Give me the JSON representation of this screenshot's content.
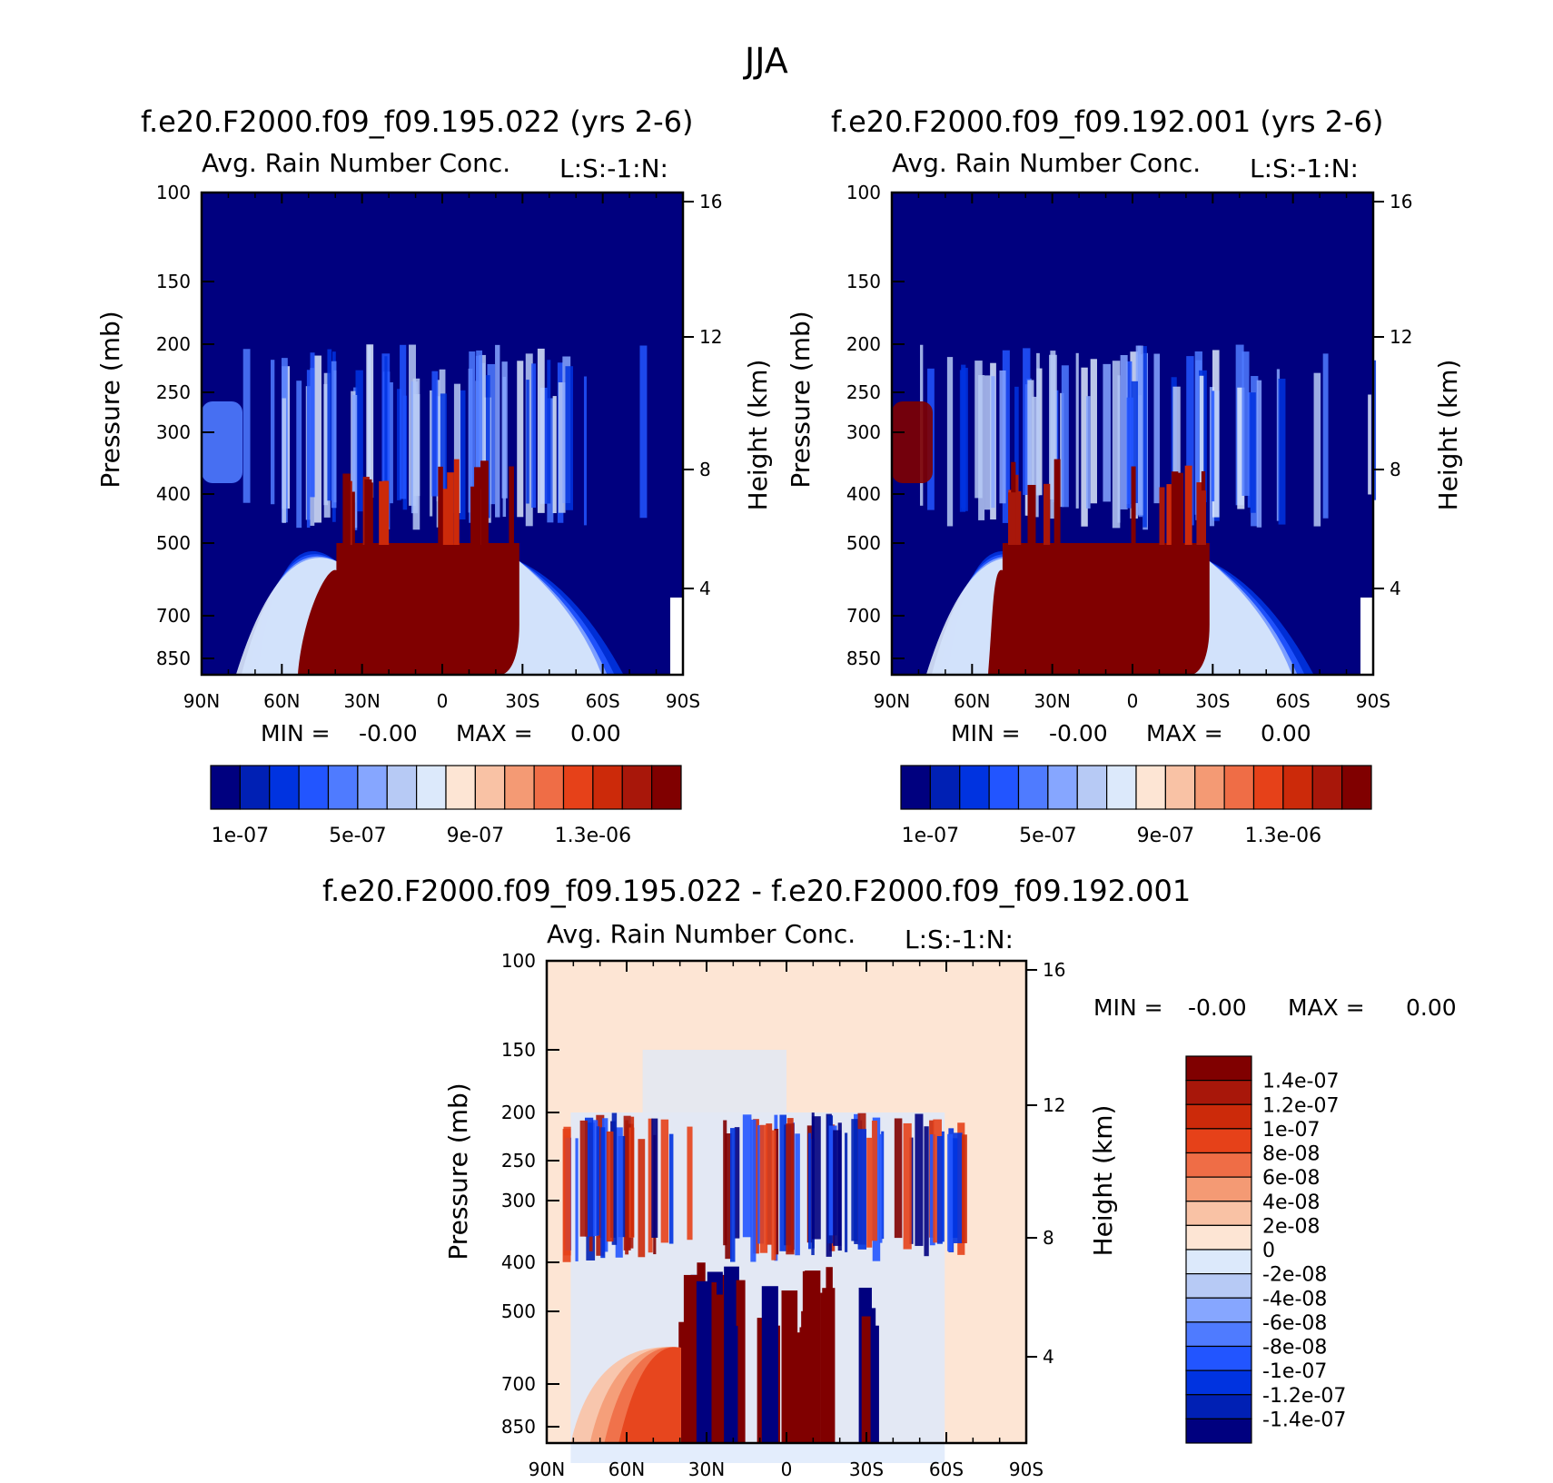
{
  "figure": {
    "title": "JJA"
  },
  "chart_data": [
    {
      "type": "heatmap",
      "title": "f.e20.F2000.f09_f09.195.022 (yrs 2-6)",
      "subtitle_left": "Avg. Rain Number Conc.",
      "subtitle_right": "L:S:-1:N:",
      "xlabel": "",
      "ylabel": "Pressure (mb)",
      "y2label": "Height (km)",
      "x_ticks": [
        "90N",
        "60N",
        "30N",
        "0",
        "30S",
        "60S",
        "90S"
      ],
      "y_ticks": [
        "100",
        "150",
        "200",
        "250",
        "300",
        "400",
        "500",
        "700",
        "850"
      ],
      "y2_ticks": [
        "16",
        "12",
        "8",
        "4"
      ],
      "y_scale": "log",
      "ylim": [
        100,
        1000
      ],
      "min_text": "MIN =",
      "min_value": "-0.00",
      "max_text": "MAX =",
      "max_value": "0.00",
      "colorbar_labels": [
        "1e-07",
        "5e-07",
        "9e-07",
        "1.3e-06"
      ],
      "colorbar_colors": [
        "#00007f",
        "#0020b4",
        "#0033e0",
        "#2255ff",
        "#4f7bff",
        "#86a6ff",
        "#b7caf5",
        "#dce9fb",
        "#fde5d4",
        "#f9c2a5",
        "#f49a74",
        "#ef6d46",
        "#e64119",
        "#cc2a0a",
        "#a8170a",
        "#800000"
      ]
    },
    {
      "type": "heatmap",
      "title": "f.e20.F2000.f09_f09.192.001 (yrs 2-6)",
      "subtitle_left": "Avg. Rain Number Conc.",
      "subtitle_right": "L:S:-1:N:",
      "xlabel": "",
      "ylabel": "Pressure (mb)",
      "y2label": "Height (km)",
      "x_ticks": [
        "90N",
        "60N",
        "30N",
        "0",
        "30S",
        "60S",
        "90S"
      ],
      "y_ticks": [
        "100",
        "150",
        "200",
        "250",
        "300",
        "400",
        "500",
        "700",
        "850"
      ],
      "y2_ticks": [
        "16",
        "12",
        "8",
        "4"
      ],
      "y_scale": "log",
      "ylim": [
        100,
        1000
      ],
      "min_text": "MIN =",
      "min_value": "-0.00",
      "max_text": "MAX =",
      "max_value": "0.00",
      "colorbar_labels": [
        "1e-07",
        "5e-07",
        "9e-07",
        "1.3e-06"
      ]
    },
    {
      "type": "heatmap",
      "title": "f.e20.F2000.f09_f09.195.022 - f.e20.F2000.f09_f09.192.001",
      "subtitle_left": "Avg. Rain Number Conc.",
      "subtitle_right": "L:S:-1:N:",
      "xlabel": "",
      "ylabel": "Pressure (mb)",
      "y2label": "Height (km)",
      "x_ticks": [
        "90N",
        "60N",
        "30N",
        "0",
        "30S",
        "60S",
        "90S"
      ],
      "y_ticks": [
        "100",
        "150",
        "200",
        "250",
        "300",
        "400",
        "500",
        "700",
        "850"
      ],
      "y2_ticks": [
        "16",
        "12",
        "8",
        "4"
      ],
      "y_scale": "log",
      "ylim": [
        100,
        1000
      ],
      "min_text": "MIN =",
      "min_value": "-0.00",
      "max_text": "MAX =",
      "max_value": "0.00",
      "colorbar_labels": [
        "1.4e-07",
        "1.2e-07",
        "1e-07",
        "8e-08",
        "6e-08",
        "4e-08",
        "2e-08",
        "0",
        "-2e-08",
        "-4e-08",
        "-6e-08",
        "-8e-08",
        "-1e-07",
        "-1.2e-07",
        "-1.4e-07"
      ],
      "colorbar_colors": [
        "#800000",
        "#a8170a",
        "#cc2a0a",
        "#e64119",
        "#ef6d46",
        "#f49a74",
        "#f9c2a5",
        "#fde5d4",
        "#dce9fb",
        "#b7caf5",
        "#86a6ff",
        "#4f7bff",
        "#2255ff",
        "#0033e0",
        "#0020b4",
        "#00007f"
      ]
    }
  ]
}
